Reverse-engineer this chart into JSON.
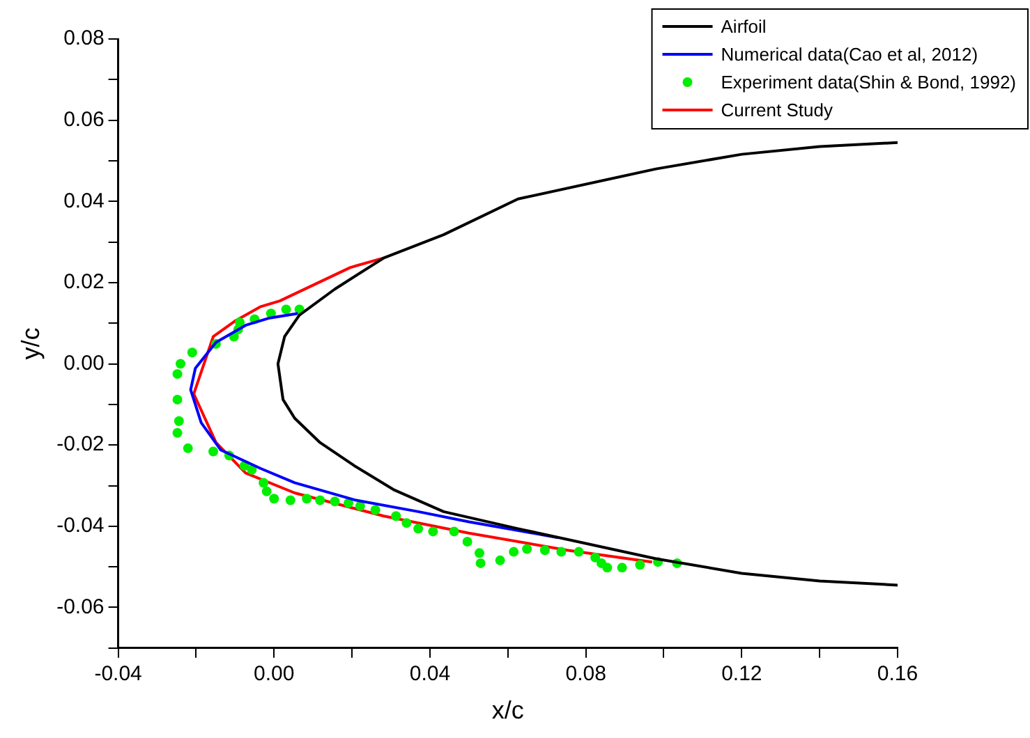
{
  "chart_data": {
    "type": "line",
    "xlabel": "x/c",
    "ylabel": "y/c",
    "xlim": [
      -0.04,
      0.16
    ],
    "ylim": [
      -0.07,
      0.08
    ],
    "xticks": [
      {
        "value": -0.04,
        "label": "-0.04"
      },
      {
        "value": -0.02,
        "label": null
      },
      {
        "value": 0,
        "label": "0.00"
      },
      {
        "value": 0.02,
        "label": null
      },
      {
        "value": 0.04,
        "label": "0.04"
      },
      {
        "value": 0.06,
        "label": null
      },
      {
        "value": 0.08,
        "label": "0.08"
      },
      {
        "value": 0.1,
        "label": null
      },
      {
        "value": 0.12,
        "label": "0.12"
      },
      {
        "value": 0.14,
        "label": null
      },
      {
        "value": 0.16,
        "label": "0.16"
      }
    ],
    "yticks": [
      {
        "value": -0.07,
        "label": null
      },
      {
        "value": -0.06,
        "label": "-0.06"
      },
      {
        "value": -0.05,
        "label": null
      },
      {
        "value": -0.04,
        "label": "-0.04"
      },
      {
        "value": -0.03,
        "label": null
      },
      {
        "value": -0.02,
        "label": "-0.02"
      },
      {
        "value": -0.01,
        "label": null
      },
      {
        "value": 0,
        "label": "0.00"
      },
      {
        "value": 0.01,
        "label": null
      },
      {
        "value": 0.02,
        "label": "0.02"
      },
      {
        "value": 0.03,
        "label": null
      },
      {
        "value": 0.04,
        "label": "0.04"
      },
      {
        "value": 0.05,
        "label": null
      },
      {
        "value": 0.06,
        "label": "0.06"
      },
      {
        "value": 0.07,
        "label": null
      },
      {
        "value": 0.08,
        "label": "0.08"
      }
    ],
    "grid": false,
    "legend": "top right",
    "series": [
      {
        "name": "Airfoil",
        "type": "line",
        "marker": "none",
        "line_style": "solid",
        "color": "#000000",
        "x": [
          0.16,
          0.14,
          0.12,
          0.098,
          0.0626,
          0.0435,
          0.0282,
          0.0156,
          0.0065,
          0.0027,
          0.001,
          0.0023,
          0.0053,
          0.0118,
          0.0206,
          0.0309,
          0.0435,
          0.0626,
          0.098,
          0.12,
          0.14,
          0.16
        ],
        "values": [
          0.0545,
          0.0535,
          0.0516,
          0.048,
          0.0406,
          0.0318,
          0.0261,
          0.0184,
          0.012,
          0.0067,
          0,
          -0.0088,
          -0.0134,
          -0.0194,
          -0.0251,
          -0.0311,
          -0.0364,
          -0.0406,
          -0.048,
          -0.0516,
          -0.0535,
          -0.0545
        ]
      },
      {
        "name": "Numerical data(Cao et al, 2012)",
        "type": "line",
        "marker": "none",
        "line_style": "solid",
        "color": "#0000ff",
        "x": [
          0.0061,
          -0.0011,
          -0.0073,
          -0.0149,
          -0.0202,
          -0.0214,
          -0.0187,
          -0.0137,
          -0.0034,
          0.0053,
          0.0206,
          0.037,
          0.05,
          0.0729
        ],
        "values": [
          0.0124,
          0.0113,
          0.0095,
          0.0053,
          -0.0011,
          -0.0064,
          -0.0145,
          -0.0212,
          -0.0258,
          -0.0293,
          -0.0335,
          -0.0364,
          -0.0389,
          -0.0428
        ]
      },
      {
        "name": "Experiment data(Shin & Bond, 1992)",
        "type": "scatter",
        "marker": "circle",
        "color": "#00ee00",
        "x": [
          0.0065,
          0.0031,
          -0.0008,
          -0.005,
          -0.0088,
          -0.0092,
          -0.0103,
          -0.0149,
          -0.021,
          -0.024,
          -0.0248,
          -0.0248,
          -0.0244,
          -0.0248,
          -0.0221,
          -0.0156,
          -0.0115,
          -0.0076,
          -0.0057,
          -0.0027,
          -0.0019,
          0,
          0.0042,
          0.0084,
          0.0118,
          0.0156,
          0.0191,
          0.0221,
          0.026,
          0.0313,
          0.034,
          0.037,
          0.0408,
          0.0462,
          0.0496,
          0.0527,
          0.053,
          0.058,
          0.0615,
          0.0649,
          0.0695,
          0.0737,
          0.0782,
          0.0824,
          0.084,
          0.0855,
          0.0893,
          0.0939,
          0.0985,
          0.1034
        ],
        "values": [
          0.0134,
          0.0134,
          0.0124,
          0.011,
          0.0102,
          0.0085,
          0.0067,
          0.0049,
          0.0028,
          0,
          -0.0025,
          -0.0088,
          -0.0141,
          -0.017,
          -0.0208,
          -0.0216,
          -0.0226,
          -0.0251,
          -0.0261,
          -0.0293,
          -0.0314,
          -0.0332,
          -0.0336,
          -0.0332,
          -0.0336,
          -0.0339,
          -0.0343,
          -0.035,
          -0.036,
          -0.0375,
          -0.0392,
          -0.0406,
          -0.0413,
          -0.0413,
          -0.0438,
          -0.0466,
          -0.0491,
          -0.0484,
          -0.0463,
          -0.0456,
          -0.0459,
          -0.0463,
          -0.0463,
          -0.0477,
          -0.0491,
          -0.0502,
          -0.0502,
          -0.0495,
          -0.0488,
          -0.0491
        ]
      },
      {
        "name": "Current Study",
        "type": "line",
        "marker": "none",
        "line_style": "solid",
        "color": "#ff0000",
        "x": [
          0.0282,
          0.0195,
          0.0015,
          -0.0034,
          -0.0099,
          -0.0156,
          -0.0206,
          -0.0149,
          -0.0073,
          0.0053,
          0.0282,
          0.05,
          0.0752,
          0.097
        ],
        "values": [
          0.0261,
          0.0237,
          0.0155,
          0.0141,
          0.0106,
          0.0067,
          -0.0074,
          -0.0194,
          -0.0269,
          -0.0318,
          -0.0375,
          -0.0417,
          -0.0459,
          -0.0488
        ]
      }
    ]
  }
}
